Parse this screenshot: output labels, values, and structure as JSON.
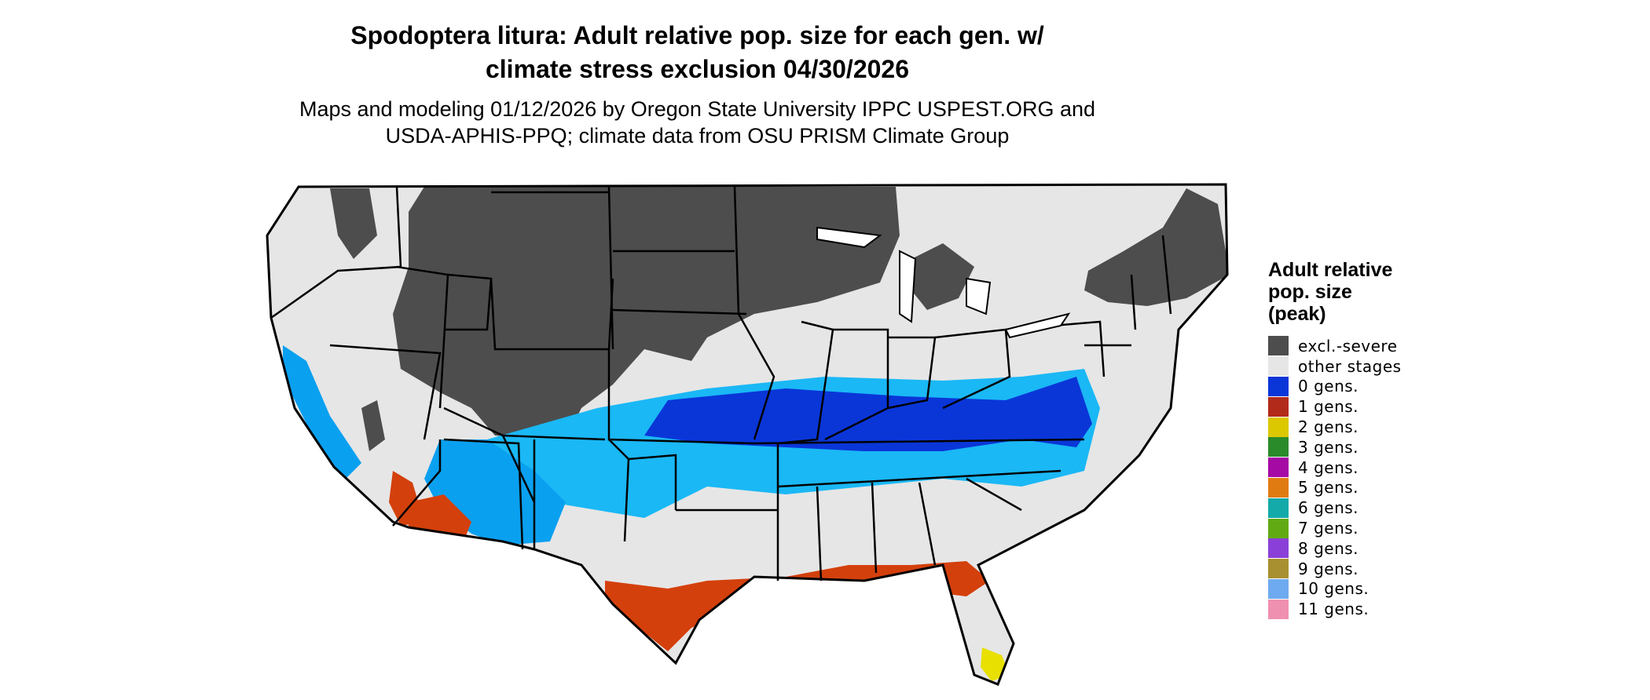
{
  "title_line1": "Spodoptera litura: Adult relative pop. size for each gen. w/",
  "title_line2": "climate stress exclusion 04/30/2026",
  "subtitle_line1": "Maps and modeling 01/12/2026 by Oregon State University IPPC USPEST.ORG and",
  "subtitle_line2": "USDA-APHIS-PPQ; climate data from OSU PRISM Climate Group",
  "legend": {
    "title_lines": [
      "Adult relative",
      "pop. size",
      "(peak)"
    ],
    "items": [
      {
        "label": "excl.-severe",
        "color": "#4d4d4d"
      },
      {
        "label": "other stages",
        "color": "#e6e6e6"
      },
      {
        "label": "0 gens.",
        "color": "#0a36d8"
      },
      {
        "label": "1 gens.",
        "color": "#b22b1a"
      },
      {
        "label": "2 gens.",
        "color": "#dcc800"
      },
      {
        "label": "3 gens.",
        "color": "#2a8b2a"
      },
      {
        "label": "4 gens.",
        "color": "#a50aa5"
      },
      {
        "label": "5 gens.",
        "color": "#e07b12"
      },
      {
        "label": "6 gens.",
        "color": "#14aaaa"
      },
      {
        "label": "7 gens.",
        "color": "#62aa14"
      },
      {
        "label": "8 gens.",
        "color": "#8a40d8"
      },
      {
        "label": "9 gens.",
        "color": "#a89030"
      },
      {
        "label": "10 gens.",
        "color": "#6eaaf0"
      },
      {
        "label": "11 gens.",
        "color": "#f090b0"
      }
    ]
  },
  "map_colors": {
    "excluded": "#4d4d4d",
    "other": "#e6e6e6",
    "gen0_dark": "#0a36d8",
    "gen0_light": "#0aa0f0",
    "gen0_cyan": "#1ab8f5",
    "gen1": "#d4400c",
    "gen2": "#e8e000",
    "border": "#000000"
  }
}
